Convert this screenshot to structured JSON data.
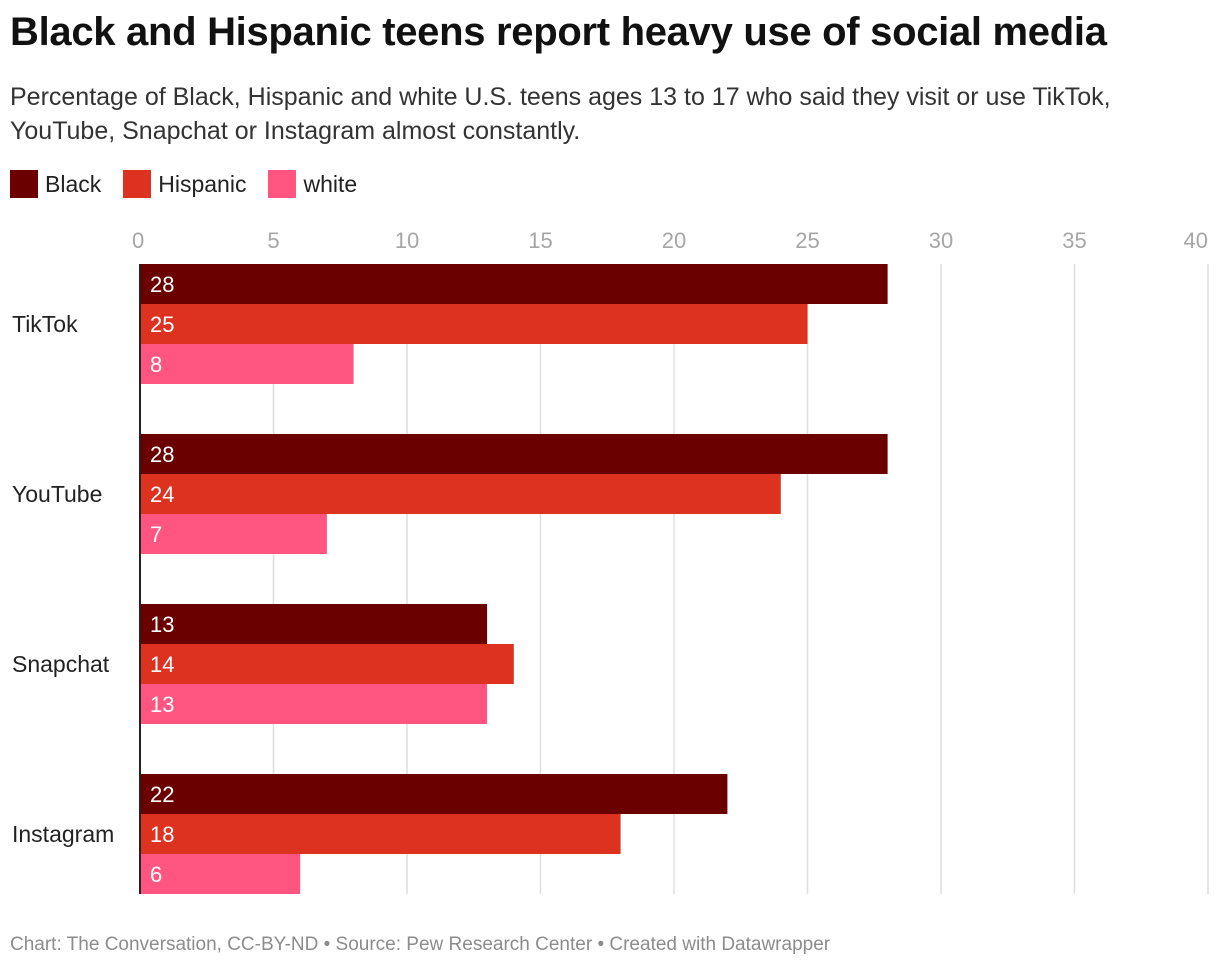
{
  "title": "Black and Hispanic teens report heavy use of social media",
  "subtitle": "Percentage of Black, Hispanic and white U.S. teens ages 13 to 17 who said they visit or use TikTok, YouTube, Snapchat or Instagram almost constantly.",
  "footer": "Chart: The Conversation, CC-BY-ND • Source: Pew Research Center • Created with Datawrapper",
  "chart_data": {
    "type": "bar",
    "orientation": "horizontal",
    "title": "Black and Hispanic teens report heavy use of social media",
    "subtitle": "Percentage of Black, Hispanic and white U.S. teens ages 13 to 17 who said they visit or use TikTok, YouTube, Snapchat or Instagram almost constantly.",
    "categories": [
      "TikTok",
      "YouTube",
      "Snapchat",
      "Instagram"
    ],
    "series": [
      {
        "name": "Black",
        "color": "#6b0000",
        "values": [
          28,
          28,
          13,
          22
        ]
      },
      {
        "name": "Hispanic",
        "color": "#de3220",
        "values": [
          25,
          24,
          14,
          18
        ]
      },
      {
        "name": "white",
        "color": "#ff5580",
        "values": [
          8,
          7,
          13,
          6
        ]
      }
    ],
    "xlim": [
      0,
      40
    ],
    "xticks": [
      0,
      5,
      10,
      15,
      20,
      25,
      30,
      35,
      40
    ],
    "grid": true,
    "legend": "top-left",
    "data_labels": true
  }
}
